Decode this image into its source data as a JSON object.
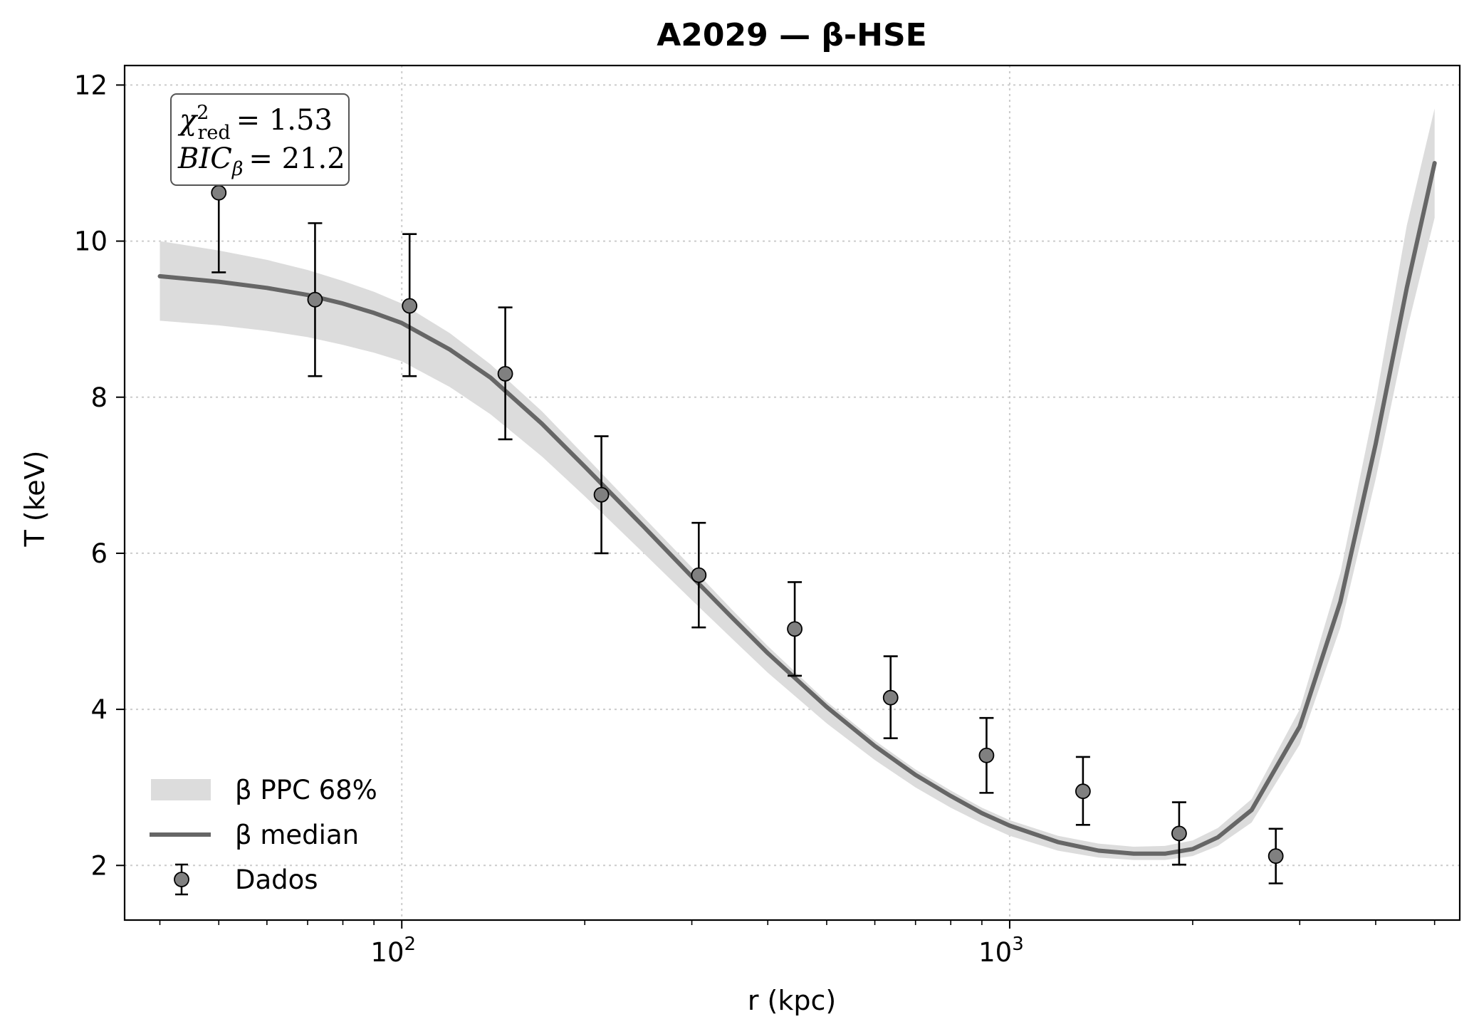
{
  "chart_data": {
    "type": "line",
    "title": "A2029 — β-HSE",
    "xlabel": "r (kpc)",
    "ylabel": "T (keV)",
    "xscale": "log",
    "xlim": [
      35,
      5500
    ],
    "ylim": [
      1.3,
      12.25
    ],
    "grid": true,
    "legend_position": "lower-left",
    "x_tick_labels": [
      "10",
      "10"
    ],
    "x_tick_exponents": [
      "2",
      "3"
    ],
    "y_ticks": [
      2,
      4,
      6,
      8,
      10,
      12
    ],
    "y_tick_labels": [
      "2",
      "4",
      "6",
      "8",
      "10",
      "12"
    ],
    "stats_box": {
      "chi_symbol": "χ",
      "chi_sup": "2",
      "chi_sub": "red",
      "chi_value": "= 1.53",
      "bic_symbol": "BIC",
      "bic_sub": "β",
      "bic_value": "= 21.2"
    },
    "series": [
      {
        "name": "β PPC 68%",
        "kind": "band",
        "color": "#dcdcdc",
        "x": [
          40,
          50,
          60,
          70,
          80,
          90,
          100,
          120,
          140,
          170,
          200,
          250,
          300,
          350,
          400,
          500,
          600,
          700,
          800,
          900,
          1000,
          1200,
          1400,
          1600,
          1800,
          2000,
          2200,
          2500,
          3000,
          3500,
          4000,
          4500,
          5000
        ],
        "lower": [
          8.98,
          8.92,
          8.85,
          8.77,
          8.67,
          8.57,
          8.46,
          8.13,
          7.78,
          7.24,
          6.73,
          6.0,
          5.4,
          4.9,
          4.47,
          3.82,
          3.35,
          3.0,
          2.74,
          2.54,
          2.38,
          2.19,
          2.1,
          2.07,
          2.07,
          2.12,
          2.25,
          2.55,
          3.55,
          5.05,
          6.95,
          8.85,
          10.3
        ],
        "upper": [
          10.0,
          9.88,
          9.76,
          9.63,
          9.49,
          9.35,
          9.2,
          8.82,
          8.42,
          7.82,
          7.25,
          6.46,
          5.82,
          5.27,
          4.81,
          4.1,
          3.6,
          3.23,
          2.96,
          2.74,
          2.58,
          2.38,
          2.28,
          2.24,
          2.25,
          2.32,
          2.48,
          2.85,
          4.0,
          5.75,
          7.95,
          10.2,
          11.7
        ]
      },
      {
        "name": "β median",
        "kind": "line",
        "color": "#666666",
        "x": [
          40,
          50,
          60,
          70,
          80,
          90,
          100,
          120,
          140,
          170,
          200,
          250,
          300,
          350,
          400,
          500,
          600,
          700,
          800,
          900,
          1000,
          1200,
          1400,
          1600,
          1800,
          2000,
          2200,
          2500,
          3000,
          3500,
          4000,
          4500,
          5000
        ],
        "y": [
          9.55,
          9.48,
          9.4,
          9.31,
          9.2,
          9.08,
          8.95,
          8.61,
          8.25,
          7.66,
          7.11,
          6.34,
          5.7,
          5.17,
          4.72,
          4.03,
          3.53,
          3.16,
          2.89,
          2.67,
          2.51,
          2.3,
          2.19,
          2.15,
          2.15,
          2.21,
          2.36,
          2.71,
          3.78,
          5.38,
          7.4,
          9.4,
          11.0
        ]
      },
      {
        "name": "Dados",
        "kind": "errorbar",
        "color": "#808080",
        "x": [
          50,
          72,
          103,
          148,
          213,
          308,
          443,
          637,
          916,
          1320,
          1900,
          2740
        ],
        "y": [
          10.62,
          9.25,
          9.17,
          8.3,
          6.75,
          5.72,
          5.03,
          4.15,
          3.41,
          2.95,
          2.41,
          2.12
        ],
        "yerr_low": [
          1.02,
          0.98,
          0.9,
          0.84,
          0.75,
          0.67,
          0.6,
          0.52,
          0.48,
          0.43,
          0.4,
          0.35
        ],
        "yerr_high": [
          1.02,
          0.98,
          0.92,
          0.85,
          0.75,
          0.67,
          0.6,
          0.53,
          0.48,
          0.44,
          0.4,
          0.35
        ]
      }
    ]
  }
}
